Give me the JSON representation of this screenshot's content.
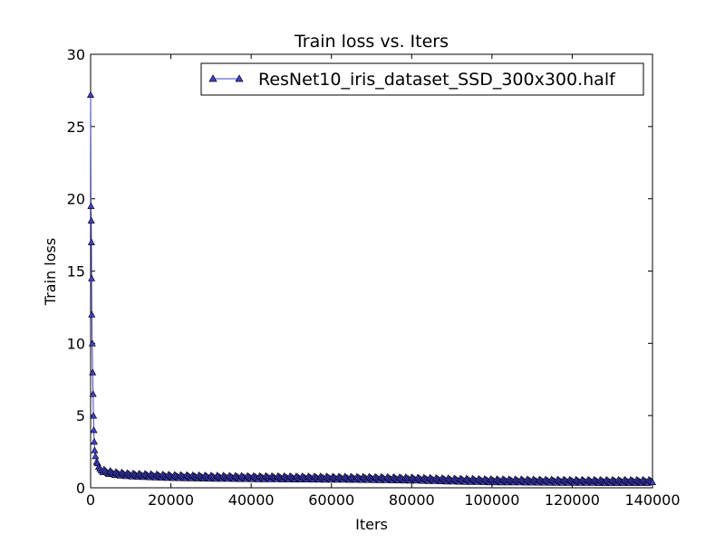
{
  "chart_data": {
    "type": "line",
    "title": "Train loss  vs. Iters",
    "xlabel": "Iters",
    "ylabel": "Train loss",
    "xlim": [
      0,
      140000
    ],
    "ylim": [
      0,
      30
    ],
    "xticks": [
      "0",
      "20000",
      "40000",
      "60000",
      "80000",
      "100000",
      "120000",
      "140000"
    ],
    "yticks": [
      "0",
      "5",
      "10",
      "15",
      "20",
      "25",
      "30"
    ],
    "grid": false,
    "legend_position": "top-right",
    "series": [
      {
        "name": "ResNet10_iris_dataset_SSD_300x300.half",
        "color": "#4040d0",
        "marker": "triangle-up",
        "x": [
          0,
          100,
          150,
          200,
          250,
          300,
          400,
          500,
          600,
          700,
          800,
          900,
          1000,
          1200,
          1500,
          2000,
          3000,
          4000,
          6000,
          8000,
          10000,
          15000,
          20000,
          30000,
          40000,
          50000,
          60000,
          70000,
          80000,
          90000,
          100000,
          110000,
          120000,
          130000,
          140000
        ],
        "y": [
          27.2,
          19.5,
          18.5,
          17.0,
          14.5,
          12.0,
          10.0,
          8.0,
          6.5,
          5.0,
          4.0,
          3.2,
          2.6,
          2.2,
          1.8,
          1.4,
          1.2,
          1.1,
          1.0,
          0.95,
          0.9,
          0.85,
          0.8,
          0.75,
          0.72,
          0.7,
          0.68,
          0.66,
          0.62,
          0.55,
          0.5,
          0.48,
          0.46,
          0.45,
          0.45
        ]
      }
    ]
  }
}
